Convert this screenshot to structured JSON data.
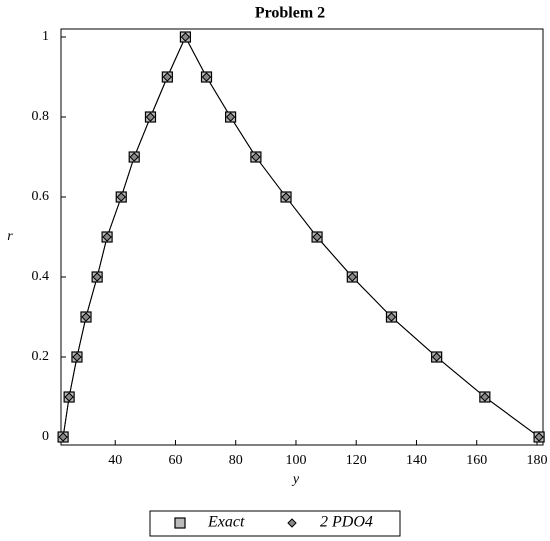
{
  "chart_data": {
    "type": "line",
    "title": "Problem 2",
    "xlabel": "y",
    "ylabel": "r",
    "x": [
      22.7,
      24.7,
      27.3,
      30.3,
      34,
      37.3,
      42,
      46.3,
      51.7,
      57.3,
      63.3,
      70.3,
      78.3,
      86.7,
      96.7,
      107,
      118.7,
      131.7,
      146.7,
      162.7,
      180.7
    ],
    "series": [
      {
        "name": "Exact",
        "color": "#000000",
        "marker": "square",
        "values": [
          0,
          0.1,
          0.2,
          0.3,
          0.4,
          0.5,
          0.6,
          0.7,
          0.8,
          0.9,
          1,
          0.9,
          0.8,
          0.7,
          0.6,
          0.5,
          0.4,
          0.3,
          0.2,
          0.1,
          0
        ]
      },
      {
        "name": "2 PDO4",
        "color": "#000000",
        "marker": "diamond",
        "values": [
          0,
          0.1,
          0.2,
          0.3,
          0.4,
          0.5,
          0.6,
          0.7,
          0.8,
          0.9,
          1,
          0.9,
          0.8,
          0.7,
          0.6,
          0.5,
          0.4,
          0.3,
          0.2,
          0.1,
          0
        ]
      }
    ],
    "xlim": [
      22,
      182
    ],
    "xticks": [
      40,
      60,
      80,
      100,
      120,
      140,
      160,
      180
    ],
    "ylim": [
      -0.02,
      1.02
    ],
    "yticks": [
      0,
      0.2,
      0.4,
      0.6,
      0.8,
      1
    ],
    "legend": "bottom"
  }
}
